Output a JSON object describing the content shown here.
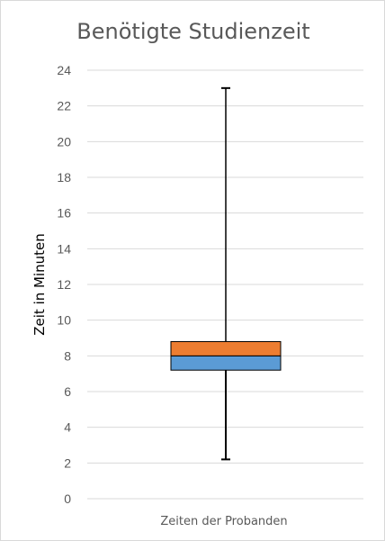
{
  "chart_data": {
    "type": "box",
    "title": "Benötigte Studienzeit",
    "xlabel": "Zeiten der Probanden",
    "ylabel": "Zeit in Minuten",
    "ylim": [
      0,
      24
    ],
    "yticks": [
      0,
      2,
      4,
      6,
      8,
      10,
      12,
      14,
      16,
      18,
      20,
      22,
      24
    ],
    "grid": true,
    "categories": [
      "Zeiten der Probanden"
    ],
    "box": {
      "min": 2.2,
      "q1": 7.2,
      "median": 8.0,
      "q3": 8.8,
      "max": 23.0
    },
    "colors": {
      "lower_box": "#5b9bd5",
      "upper_box": "#ed7d31",
      "grid": "#d9d9d9",
      "whisker": "#000000"
    }
  }
}
